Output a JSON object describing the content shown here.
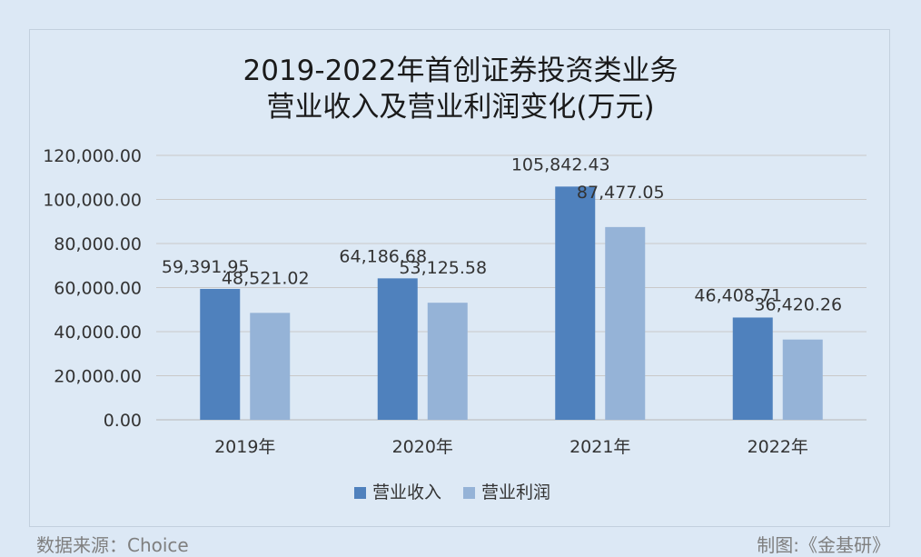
{
  "chart_data": {
    "type": "bar",
    "title_lines": [
      "2019-2022年首创证券投资类业务",
      "营业收入及营业利润变化(万元)"
    ],
    "categories": [
      "2019年",
      "2020年",
      "2021年",
      "2022年"
    ],
    "series": [
      {
        "name": "营业收入",
        "color": "#4f81bd",
        "values": [
          59391.95,
          64186.68,
          105842.43,
          46408.71
        ],
        "labels": [
          "59,391.95",
          "64,186.68",
          "105,842.43",
          "46,408.71"
        ]
      },
      {
        "name": "营业利润",
        "color": "#95b3d7",
        "values": [
          48521.02,
          53125.58,
          87477.05,
          36420.26
        ],
        "labels": [
          "48,521.02",
          "53,125.58",
          "87,477.05",
          "36,420.26"
        ]
      }
    ],
    "ylim": [
      0,
      120000
    ],
    "yticks": [
      "0.00",
      "20,000.00",
      "40,000.00",
      "60,000.00",
      "80,000.00",
      "100,000.00",
      "120,000.00"
    ],
    "grid": true,
    "legend_position": "bottom"
  },
  "footer": {
    "source": "数据来源：Choice",
    "credit": "制图:《金基研》"
  }
}
